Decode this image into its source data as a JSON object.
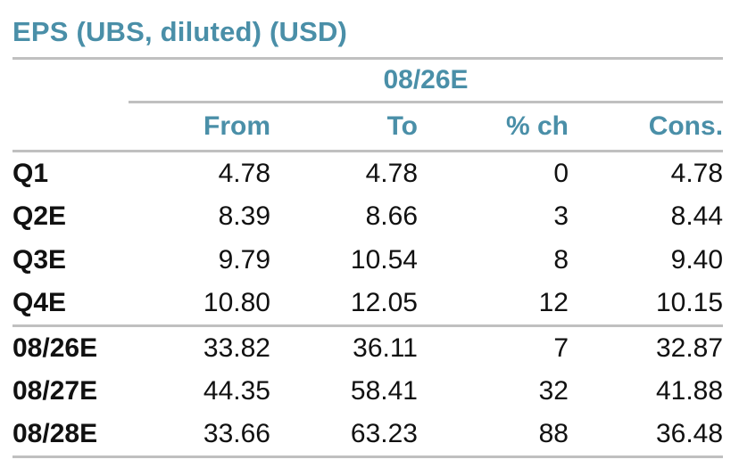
{
  "title": "EPS (UBS, diluted) (USD)",
  "table": {
    "period_header": "08/26E",
    "columns": [
      "From",
      "To",
      "% ch",
      "Cons."
    ],
    "rows": [
      {
        "label": "Q1",
        "from": "4.78",
        "to": "4.78",
        "pct_ch": "0",
        "cons": "4.78"
      },
      {
        "label": "Q2E",
        "from": "8.39",
        "to": "8.66",
        "pct_ch": "3",
        "cons": "8.44"
      },
      {
        "label": "Q3E",
        "from": "9.79",
        "to": "10.54",
        "pct_ch": "8",
        "cons": "9.40"
      },
      {
        "label": "Q4E",
        "from": "10.80",
        "to": "12.05",
        "pct_ch": "12",
        "cons": "10.15"
      },
      {
        "label": "08/26E",
        "from": "33.82",
        "to": "36.11",
        "pct_ch": "7",
        "cons": "32.87"
      },
      {
        "label": "08/27E",
        "from": "44.35",
        "to": "58.41",
        "pct_ch": "32",
        "cons": "41.88"
      },
      {
        "label": "08/28E",
        "from": "33.66",
        "to": "63.23",
        "pct_ch": "88",
        "cons": "36.48"
      }
    ],
    "rule_after_labels": [
      "Q4E",
      "08/28E"
    ]
  },
  "colors": {
    "accent": "#4a8fa8",
    "rule": "#c0c0c0",
    "text": "#111111"
  },
  "chart_data": {
    "type": "table",
    "title": "EPS (UBS, diluted) (USD)",
    "period_header": "08/26E",
    "columns": [
      "",
      "From",
      "To",
      "% ch",
      "Cons."
    ],
    "rows": [
      [
        "Q1",
        4.78,
        4.78,
        0,
        4.78
      ],
      [
        "Q2E",
        8.39,
        8.66,
        3,
        8.44
      ],
      [
        "Q3E",
        9.79,
        10.54,
        8,
        9.4
      ],
      [
        "Q4E",
        10.8,
        12.05,
        12,
        10.15
      ],
      [
        "08/26E",
        33.82,
        36.11,
        7,
        32.87
      ],
      [
        "08/27E",
        44.35,
        58.41,
        32,
        41.88
      ],
      [
        "08/28E",
        33.66,
        63.23,
        88,
        36.48
      ]
    ]
  }
}
